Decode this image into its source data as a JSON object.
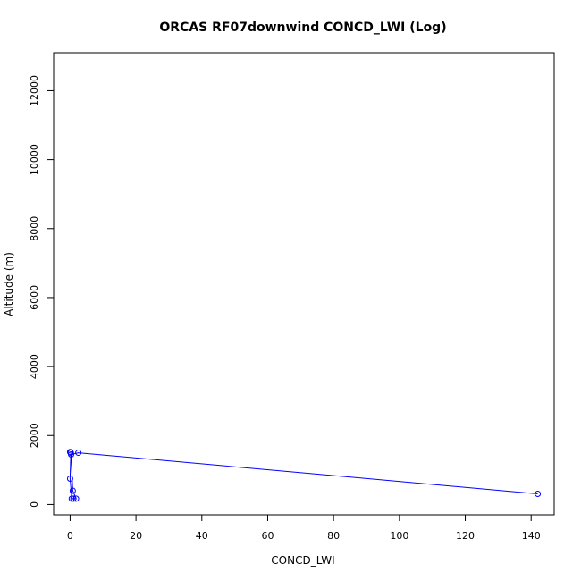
{
  "chart_data": {
    "type": "line",
    "title": "ORCAS RF07downwind CONCD_LWI (Log)",
    "xlabel": "CONCD_LWI",
    "ylabel": "Altitude (m)",
    "xlim": [
      -5,
      147
    ],
    "ylim": [
      -300,
      13100
    ],
    "xticks": [
      0,
      20,
      40,
      60,
      80,
      100,
      120,
      140
    ],
    "yticks": [
      0,
      2000,
      4000,
      6000,
      8000,
      10000,
      12000
    ],
    "grid": false,
    "series": [
      {
        "color": "#0000ff",
        "points": [
          {
            "x": 0.0,
            "y": 1520
          },
          {
            "x": 0.1,
            "y": 1510
          },
          {
            "x": 0.2,
            "y": 1500
          },
          {
            "x": 0.0,
            "y": 750
          },
          {
            "x": 0.5,
            "y": 170
          },
          {
            "x": 1.0,
            "y": 170
          },
          {
            "x": 1.8,
            "y": 170
          },
          {
            "x": 0.8,
            "y": 400
          },
          {
            "x": 0.3,
            "y": 1450
          },
          {
            "x": 2.5,
            "y": 1500
          },
          {
            "x": 142.0,
            "y": 310
          }
        ]
      }
    ]
  }
}
